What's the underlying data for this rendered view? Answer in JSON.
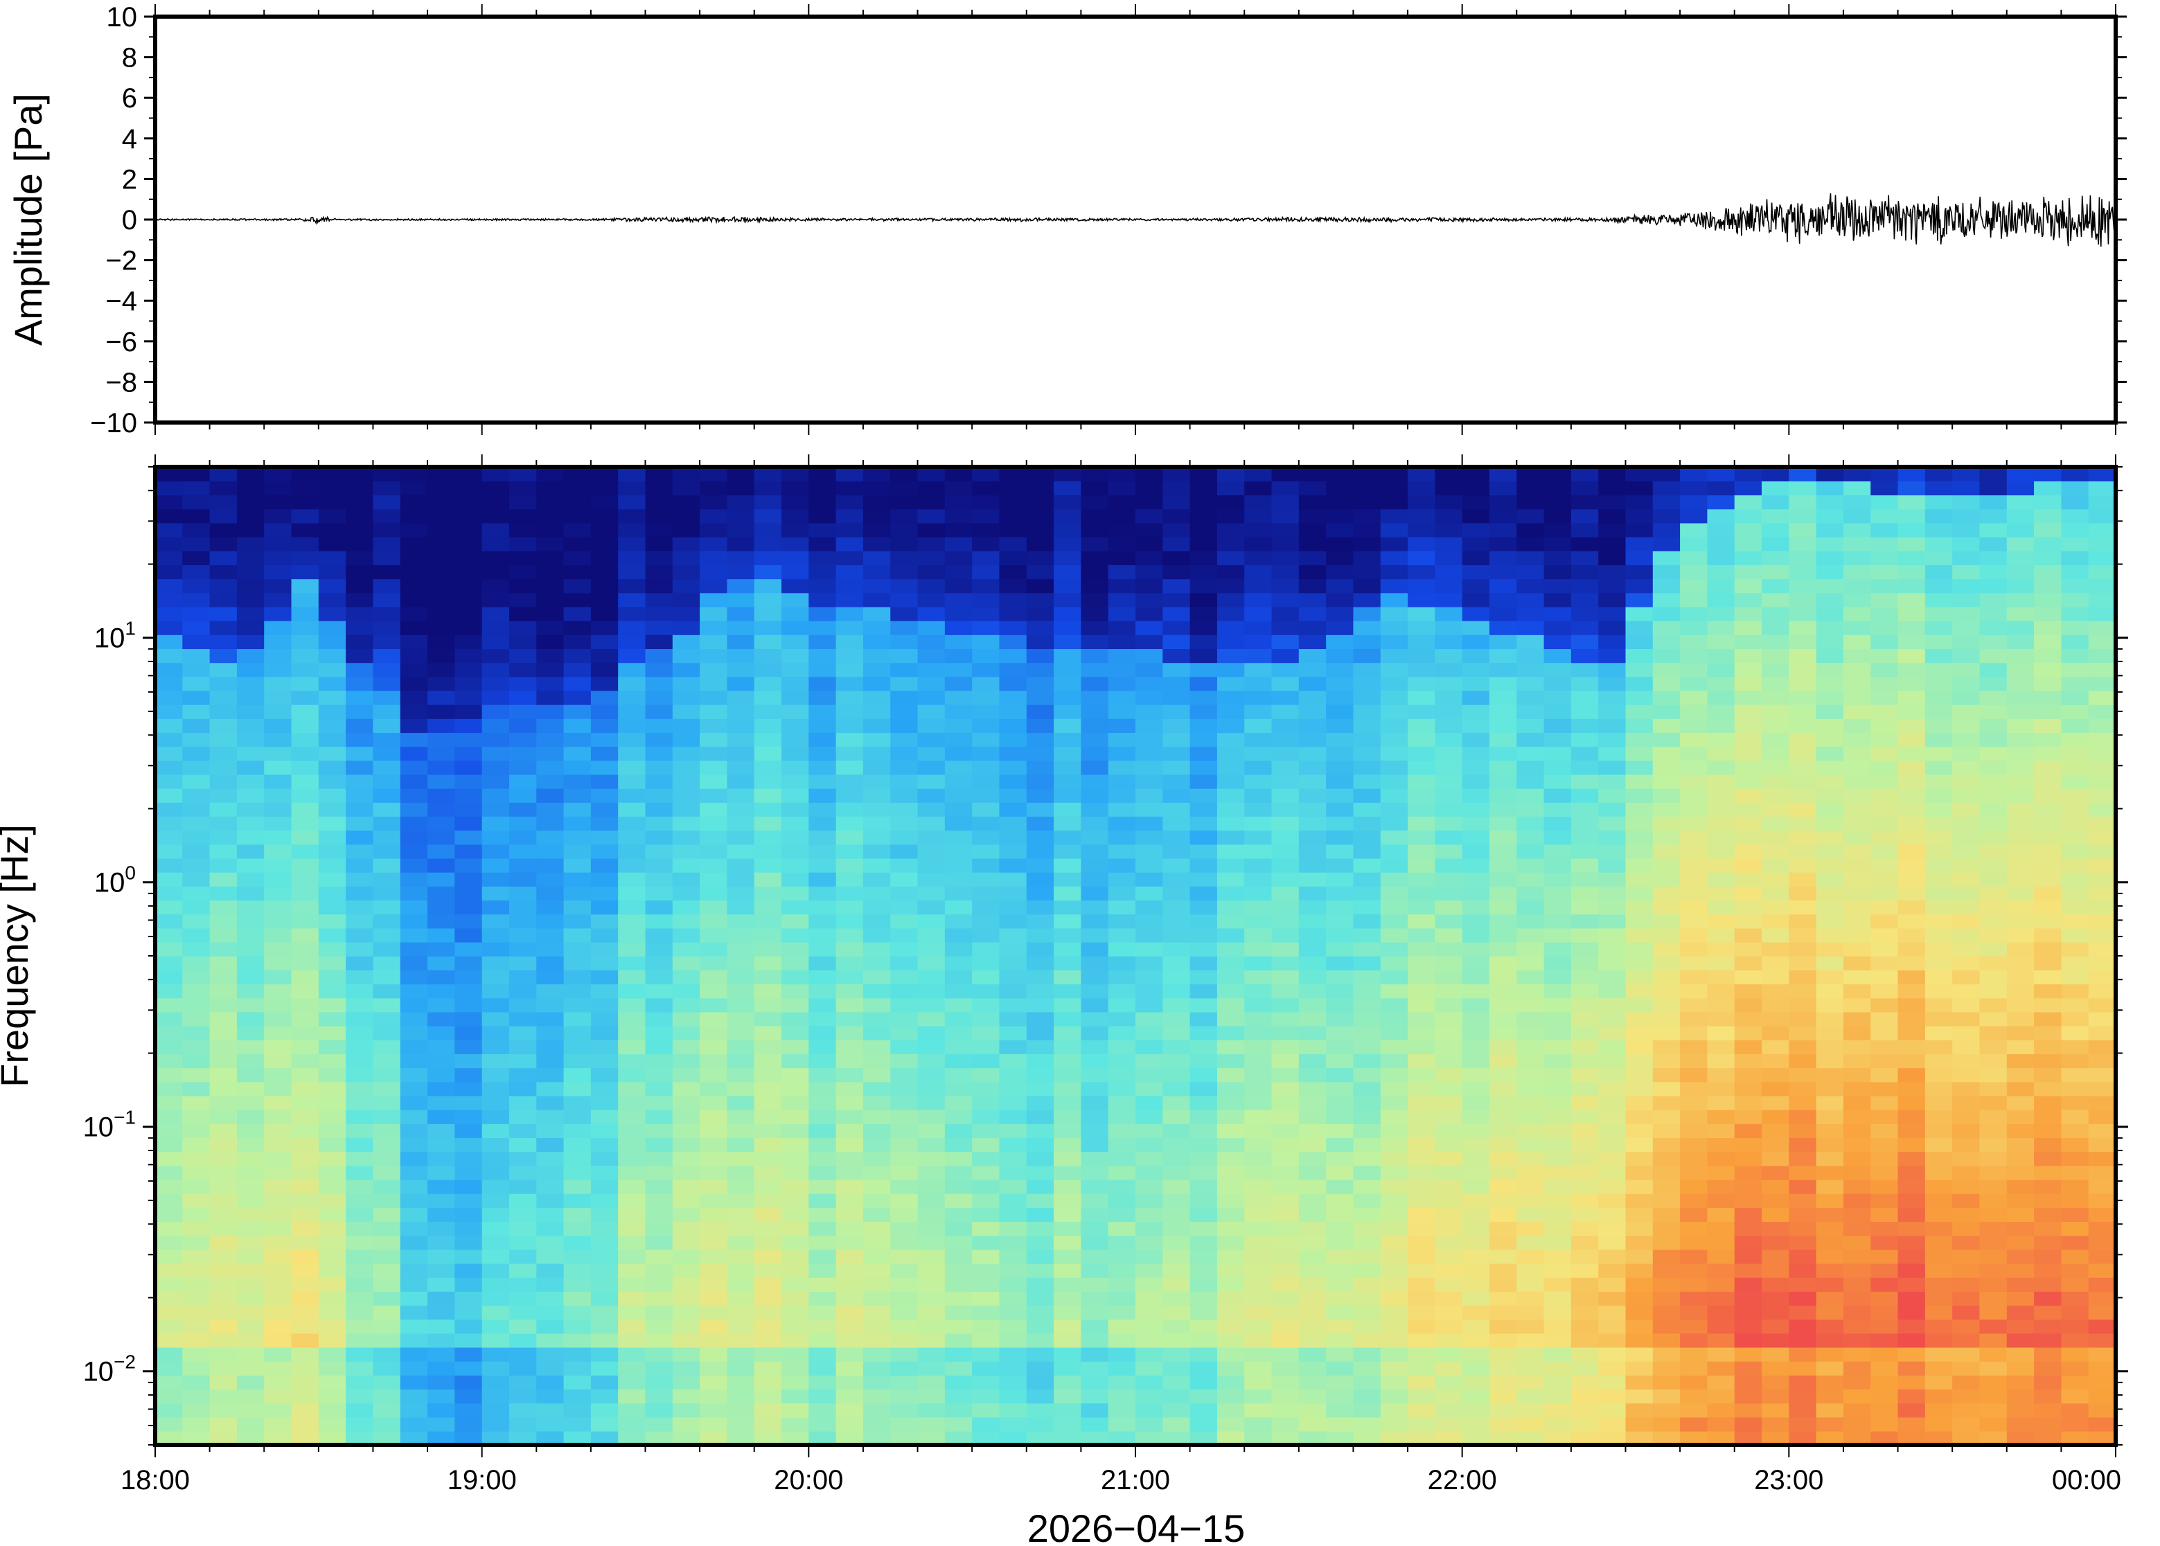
{
  "chart_data": [
    {
      "type": "line",
      "panel": "waveform",
      "ylabel": "Amplitude [Pa]",
      "ylim": [
        -10,
        10
      ],
      "yticks": [
        10,
        8,
        6,
        4,
        2,
        0,
        -2,
        -4,
        -6,
        -8,
        -10
      ],
      "ytick_labels": [
        "10",
        "8",
        "6",
        "4",
        "2",
        "0",
        "−2",
        "−4",
        "−6",
        "−8",
        "−10"
      ],
      "xlim": [
        "18:00",
        "00:00"
      ],
      "series": [
        {
          "color": "#000000",
          "envelope_hours": [
            0.0,
            0.3,
            0.45,
            0.5,
            0.55,
            0.8,
            1.0,
            1.3,
            1.5,
            1.8,
            2.0,
            2.3,
            2.6,
            3.0,
            3.3,
            3.6,
            3.9,
            4.2,
            4.4,
            4.55,
            4.7,
            4.8,
            5.0,
            5.1,
            5.3,
            5.5,
            5.7,
            5.8,
            5.9,
            6.0
          ],
          "envelope_amplitude_pa": [
            0.05,
            0.05,
            0.06,
            0.3,
            0.06,
            0.05,
            0.05,
            0.05,
            0.12,
            0.15,
            0.08,
            0.07,
            0.1,
            0.06,
            0.08,
            0.14,
            0.12,
            0.08,
            0.1,
            0.25,
            0.4,
            0.9,
            1.2,
            1.4,
            1.5,
            1.3,
            1.0,
            1.2,
            1.6,
            1.5
          ]
        }
      ]
    },
    {
      "type": "heatmap",
      "panel": "spectrogram",
      "ylabel": "Frequency [Hz]",
      "xlabel": "2026−04−15",
      "yscale": "log",
      "ylim": [
        0.005,
        50
      ],
      "yticks": [
        {
          "value": 10,
          "base": "10",
          "exp": "1"
        },
        {
          "value": 1,
          "base": "10",
          "exp": "0"
        },
        {
          "value": 0.1,
          "base": "10",
          "exp": "−1"
        },
        {
          "value": 0.01,
          "base": "10",
          "exp": "−2"
        }
      ],
      "xlim": [
        "18:00",
        "00:00"
      ],
      "xtick_labels": [
        "18:00",
        "19:00",
        "20:00",
        "21:00",
        "22:00",
        "23:00",
        "00:00"
      ],
      "colormap": "jet",
      "colormap_stops": [
        "#0d0d7a",
        "#1448e6",
        "#2aa8f5",
        "#5ee6e0",
        "#bff2a0",
        "#f6e37a",
        "#f9a23c",
        "#ef4e4a"
      ],
      "power_scale": "relative 0 to 1",
      "profile_hours": [
        0.0,
        0.25,
        0.45,
        0.5,
        0.55,
        0.8,
        1.0,
        1.3,
        1.6,
        1.8,
        2.0,
        2.3,
        2.6,
        2.9,
        3.2,
        3.5,
        3.8,
        4.0,
        4.2,
        4.4,
        4.5,
        4.6,
        4.8,
        5.0,
        5.3,
        5.6,
        5.9,
        6.0
      ],
      "upper_edge_hz": [
        10,
        8,
        15,
        25,
        10,
        4,
        5,
        5,
        10,
        18,
        14,
        12,
        10,
        9,
        8,
        8,
        15,
        12,
        10,
        8,
        8,
        20,
        35,
        45,
        40,
        40,
        42,
        42
      ],
      "low_band_power": [
        0.55,
        0.62,
        0.7,
        0.8,
        0.62,
        0.38,
        0.35,
        0.45,
        0.6,
        0.62,
        0.58,
        0.55,
        0.5,
        0.5,
        0.55,
        0.6,
        0.65,
        0.68,
        0.7,
        0.72,
        0.8,
        0.85,
        0.92,
        0.96,
        0.95,
        0.94,
        0.95,
        0.95
      ]
    }
  ]
}
